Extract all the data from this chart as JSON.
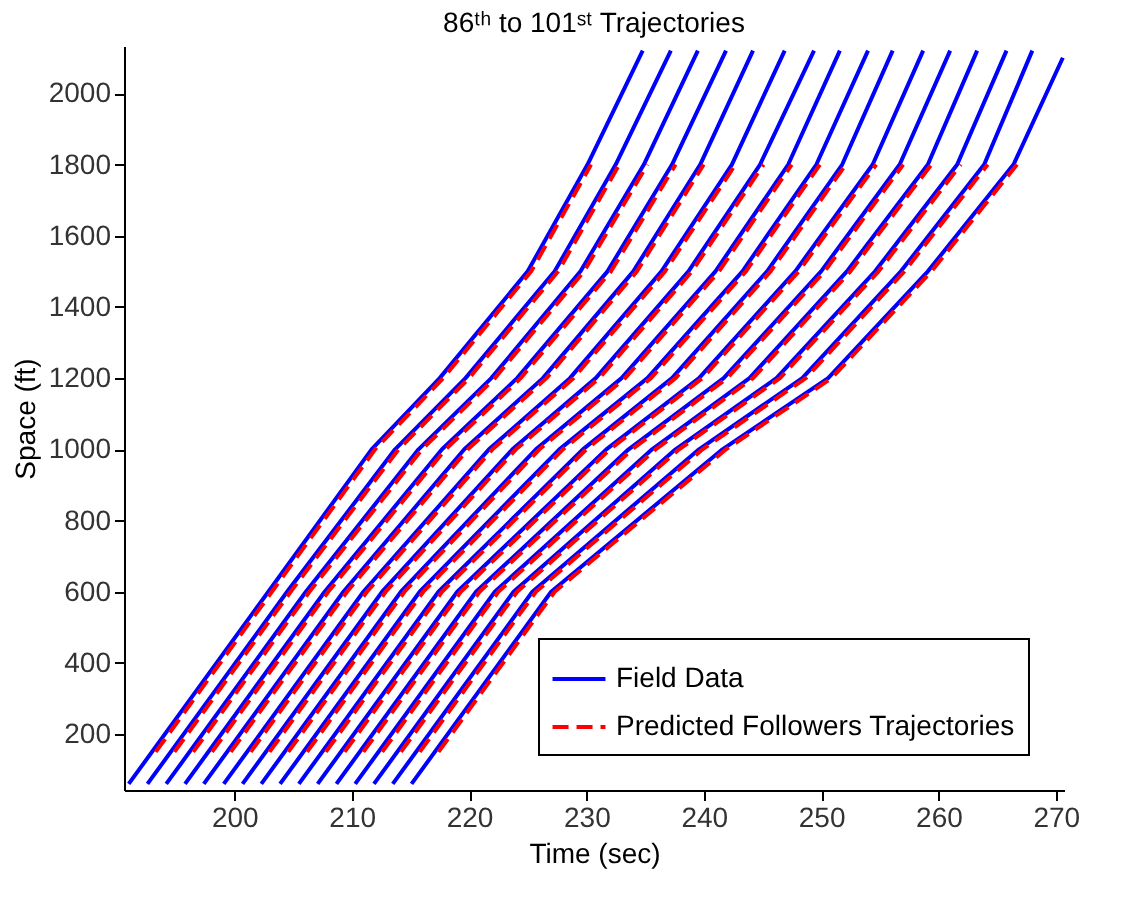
{
  "chart_data": {
    "type": "line",
    "title": "86ᵗʰ to 101ˢᵗ Trajectories",
    "xlabel": "Time (sec)",
    "ylabel": "Space (ft)",
    "xlim": [
      190.6,
      270.7
    ],
    "ylim": [
      43,
      2133
    ],
    "xticks": [
      200,
      210,
      220,
      230,
      240,
      250,
      260,
      270
    ],
    "yticks": [
      200,
      400,
      600,
      800,
      1000,
      1200,
      1400,
      1600,
      1800,
      2000
    ],
    "grid": false,
    "legend": "bottom right",
    "marker": "none",
    "series": [
      {
        "name": "Field Data",
        "color": "#0000ff",
        "line_style": "solid",
        "x": [
          191.0,
          202.9,
          211.7,
          217.5,
          225.0,
          230.1,
          234.8,
          null,
          192.6,
          204.5,
          213.7,
          219.7,
          227.3,
          232.5,
          237.2,
          null,
          194.2,
          206.1,
          215.7,
          221.9,
          229.5,
          234.9,
          239.5,
          null,
          195.8,
          207.7,
          217.7,
          224.1,
          231.8,
          237.3,
          241.9,
          null,
          197.4,
          209.3,
          219.6,
          226.3,
          234.0,
          239.7,
          244.2,
          null,
          199.1,
          211.0,
          221.7,
          228.6,
          236.4,
          242.4,
          246.9,
          null,
          200.7,
          212.6,
          223.7,
          230.8,
          238.7,
          244.8,
          249.4,
          null,
          202.3,
          214.2,
          225.7,
          233.0,
          241.0,
          247.2,
          251.6,
          null,
          203.9,
          215.8,
          227.7,
          235.2,
          243.3,
          249.6,
          254.0,
          null,
          205.5,
          217.4,
          229.7,
          237.3,
          245.4,
          251.8,
          256.1,
          null,
          207.1,
          219.0,
          231.7,
          239.6,
          247.8,
          254.4,
          258.7,
          null,
          208.7,
          220.6,
          233.6,
          241.7,
          250.0,
          256.7,
          261.0,
          null,
          210.3,
          222.2,
          235.6,
          243.9,
          252.2,
          259.1,
          263.3,
          null,
          211.9,
          223.8,
          237.6,
          246.2,
          254.6,
          261.6,
          265.8,
          null,
          213.5,
          225.4,
          239.6,
          248.4,
          256.8,
          263.9,
          268.0,
          null,
          215.1,
          227.0,
          241.6,
          250.6,
          259.1,
          266.4,
          270.6
        ],
        "values": [
          60,
          600,
          1000,
          1200,
          1500,
          1800,
          2120,
          null,
          60,
          600,
          1000,
          1200,
          1500,
          1800,
          2120,
          null,
          60,
          600,
          1000,
          1200,
          1500,
          1800,
          2120,
          null,
          60,
          600,
          1000,
          1200,
          1500,
          1800,
          2120,
          null,
          60,
          600,
          1000,
          1200,
          1500,
          1800,
          2120,
          null,
          60,
          600,
          1000,
          1200,
          1500,
          1800,
          2120,
          null,
          60,
          600,
          1000,
          1200,
          1500,
          1800,
          2120,
          null,
          60,
          600,
          1000,
          1200,
          1500,
          1800,
          2120,
          null,
          60,
          600,
          1000,
          1200,
          1500,
          1800,
          2120,
          null,
          60,
          600,
          1000,
          1200,
          1500,
          1800,
          2120,
          null,
          60,
          600,
          1000,
          1200,
          1500,
          1800,
          2120,
          null,
          60,
          600,
          1000,
          1200,
          1500,
          1800,
          2120,
          null,
          60,
          600,
          1000,
          1200,
          1500,
          1800,
          2120,
          null,
          60,
          600,
          1000,
          1200,
          1500,
          1800,
          2120,
          null,
          60,
          600,
          1000,
          1200,
          1500,
          1800,
          2120,
          null,
          60,
          600,
          1000,
          1200,
          1500,
          1800,
          2100
        ]
      },
      {
        "name": "Predicted Followers Trajectories",
        "color": "#ff0000",
        "line_style": "dashed",
        "x": [
          193.3,
          203.2,
          212.0,
          217.8,
          225.3,
          230.4,
          null,
          194.9,
          204.8,
          214.0,
          220.0,
          227.6,
          232.8,
          null,
          196.5,
          206.4,
          216.0,
          222.2,
          229.8,
          235.2,
          null,
          198.1,
          208.0,
          218.0,
          224.4,
          232.1,
          237.6,
          null,
          199.7,
          209.6,
          219.9,
          226.6,
          234.3,
          240.0,
          null,
          201.4,
          211.3,
          222.0,
          228.9,
          236.7,
          242.7,
          null,
          203.0,
          212.9,
          224.0,
          231.1,
          239.0,
          245.1,
          null,
          204.6,
          214.5,
          226.0,
          233.3,
          241.3,
          247.5,
          null,
          206.2,
          216.1,
          228.0,
          235.5,
          243.6,
          249.9,
          null,
          207.8,
          217.7,
          230.0,
          237.6,
          245.7,
          252.1,
          null,
          209.4,
          219.3,
          232.0,
          239.9,
          248.1,
          254.7,
          null,
          211.0,
          220.9,
          233.9,
          242.0,
          250.3,
          257.0,
          null,
          212.6,
          222.5,
          235.9,
          244.2,
          252.5,
          259.4,
          null,
          214.2,
          224.1,
          237.9,
          246.5,
          254.9,
          261.9,
          null,
          215.8,
          225.7,
          239.9,
          248.7,
          257.1,
          264.2,
          null,
          217.4,
          227.3,
          241.9,
          250.9,
          259.4,
          266.7
        ],
        "values": [
          150,
          600,
          1000,
          1200,
          1500,
          1800,
          null,
          150,
          600,
          1000,
          1200,
          1500,
          1800,
          null,
          150,
          600,
          1000,
          1200,
          1500,
          1800,
          null,
          150,
          600,
          1000,
          1200,
          1500,
          1800,
          null,
          150,
          600,
          1000,
          1200,
          1500,
          1800,
          null,
          150,
          600,
          1000,
          1200,
          1500,
          1800,
          null,
          150,
          600,
          1000,
          1200,
          1500,
          1800,
          null,
          150,
          600,
          1000,
          1200,
          1500,
          1800,
          null,
          150,
          600,
          1000,
          1200,
          1500,
          1800,
          null,
          150,
          600,
          1000,
          1200,
          1500,
          1800,
          null,
          150,
          600,
          1000,
          1200,
          1500,
          1800,
          null,
          150,
          600,
          1000,
          1200,
          1500,
          1800,
          null,
          150,
          600,
          1000,
          1200,
          1500,
          1800,
          null,
          150,
          600,
          1000,
          1200,
          1500,
          1800,
          null,
          150,
          600,
          1000,
          1200,
          1500,
          1800,
          null,
          150,
          600,
          1000,
          1200,
          1500,
          1800
        ]
      }
    ]
  }
}
